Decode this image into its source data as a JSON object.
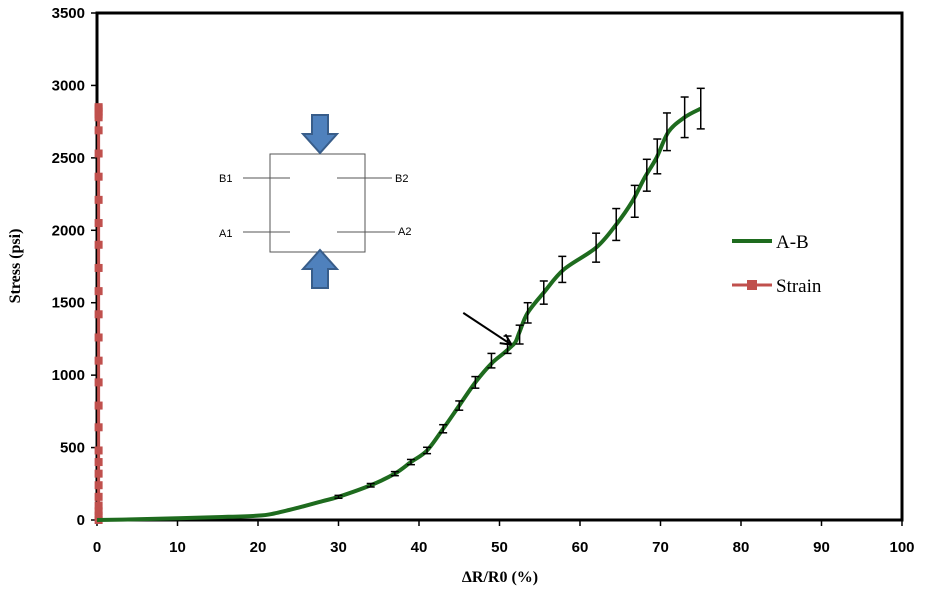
{
  "chart_data": {
    "type": "line",
    "xlabel": "ΔR/R0 (%)",
    "ylabel": "Stress (psi)",
    "xlim": [
      0,
      100
    ],
    "ylim": [
      0,
      3500
    ],
    "x_ticks": [
      0,
      10,
      20,
      30,
      40,
      50,
      60,
      70,
      80,
      90,
      100
    ],
    "y_ticks": [
      0,
      500,
      1000,
      1500,
      2000,
      2500,
      3000,
      3500
    ],
    "grid": false,
    "legend_position": "right",
    "series": [
      {
        "name": "A-B",
        "color": "#1e6b1e",
        "marker": "none",
        "x": [
          0,
          5,
          10,
          15,
          20,
          22,
          25,
          28,
          30,
          34,
          37,
          39,
          41,
          43,
          45,
          47,
          49,
          50.5,
          51.5,
          52,
          52.5,
          53.5,
          55.5,
          58,
          62,
          64.5,
          66.5,
          68,
          69.5,
          71,
          73,
          75
        ],
        "y": [
          0,
          5,
          12,
          20,
          30,
          45,
          85,
          130,
          160,
          240,
          320,
          400,
          480,
          630,
          790,
          950,
          1080,
          1150,
          1200,
          1230,
          1300,
          1430,
          1570,
          1730,
          1880,
          2040,
          2200,
          2360,
          2500,
          2680,
          2780,
          2840
        ],
        "error_x": [
          30,
          34,
          37,
          39,
          41,
          43,
          45,
          47,
          49,
          51,
          52.5,
          53.5,
          55.5,
          57.8,
          62,
          64.5,
          66.8,
          68.3,
          69.6,
          70.8,
          73,
          75
        ],
        "error_y": [
          160,
          240,
          320,
          400,
          480,
          630,
          790,
          950,
          1100,
          1210,
          1280,
          1430,
          1570,
          1730,
          1880,
          2040,
          2200,
          2380,
          2510,
          2680,
          2780,
          2840
        ],
        "error_size": [
          10,
          12,
          14,
          18,
          22,
          28,
          32,
          40,
          50,
          60,
          65,
          70,
          80,
          90,
          100,
          110,
          110,
          110,
          120,
          130,
          140,
          140
        ]
      },
      {
        "name": "Strain",
        "color": "#c0504d",
        "marker": "square",
        "x": [
          0.2,
          0.2,
          0.2,
          0.2,
          0.2,
          0.2,
          0.2,
          0.2,
          0.2,
          0.2,
          0.2,
          0.2,
          0.2,
          0.2,
          0.2,
          0.2,
          0.2,
          0.2,
          0.2,
          0.2,
          0.2,
          0.2,
          0.2,
          0.2,
          0.2,
          0.2,
          0.2,
          0.2
        ],
        "y": [
          0,
          30,
          60,
          100,
          160,
          240,
          320,
          400,
          480,
          640,
          790,
          950,
          1100,
          1260,
          1420,
          1580,
          1740,
          1900,
          2050,
          2210,
          2370,
          2530,
          2690,
          2780,
          2800,
          2820,
          2840,
          2850
        ]
      }
    ],
    "annotations": [
      {
        "type": "arrow",
        "from": [
          45.5,
          1430
        ],
        "to": [
          51.5,
          1210
        ]
      }
    ],
    "inset": {
      "labels": [
        "B1",
        "B2",
        "A1",
        "A2"
      ]
    }
  }
}
